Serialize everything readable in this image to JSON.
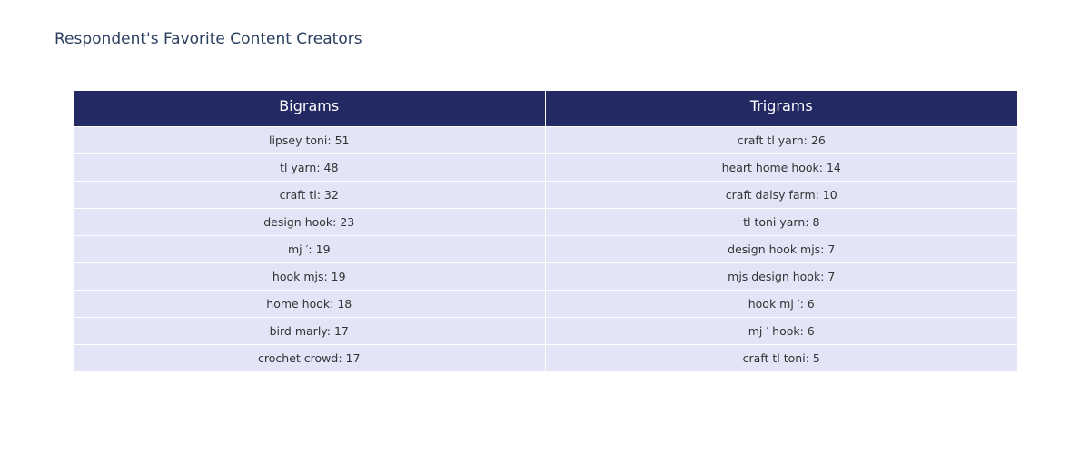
{
  "title": "Respondent's Favorite Content Creators",
  "colors": {
    "header_fill": "#232a63",
    "header_text": "#ffffff",
    "cell_fill": "#e3e5f7",
    "cell_text": "#333333",
    "title_text": "#2a3f5f"
  },
  "chart_data": {
    "type": "table",
    "title": "Respondent's Favorite Content Creators",
    "columns": [
      "Bigrams",
      "Trigrams"
    ],
    "rows": [
      [
        "lipsey toni: 51",
        "craft tl yarn: 26"
      ],
      [
        "tl yarn: 48",
        "heart home hook: 14"
      ],
      [
        "craft tl: 32",
        "craft daisy farm: 10"
      ],
      [
        "design hook: 23",
        "tl toni yarn: 8"
      ],
      [
        "mj ′: 19",
        "design hook mjs: 7"
      ],
      [
        "hook mjs: 19",
        "mjs design hook: 7"
      ],
      [
        "home hook: 18",
        "hook mj ′: 6"
      ],
      [
        "bird marly: 17",
        "mj ′ hook: 6"
      ],
      [
        "crochet crowd: 17",
        "craft tl toni: 5"
      ]
    ]
  }
}
